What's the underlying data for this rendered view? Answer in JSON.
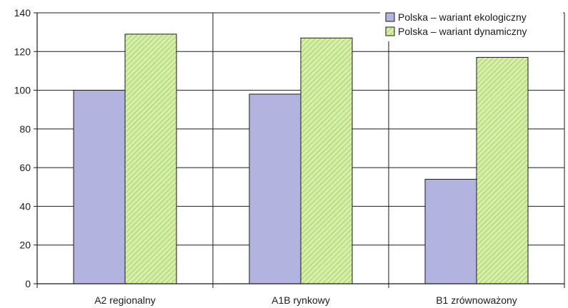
{
  "chart_data": {
    "type": "bar",
    "categories": [
      "A2 regionalny",
      "A1B rynkowy",
      "B1 zrównoważony"
    ],
    "series": [
      {
        "name": "Polska – wariant ekologiczny",
        "values": [
          100,
          98,
          54
        ],
        "color": "#b3b3e0"
      },
      {
        "name": "Polska – wariant dynamiczny",
        "values": [
          129,
          127,
          117
        ],
        "color": "#c8e89a"
      }
    ],
    "title": "",
    "xlabel": "",
    "ylabel": "",
    "ylim": [
      0,
      140
    ],
    "yticks": [
      0,
      20,
      40,
      60,
      80,
      100,
      120,
      140
    ],
    "grid": true,
    "legend_position": "top-right"
  }
}
